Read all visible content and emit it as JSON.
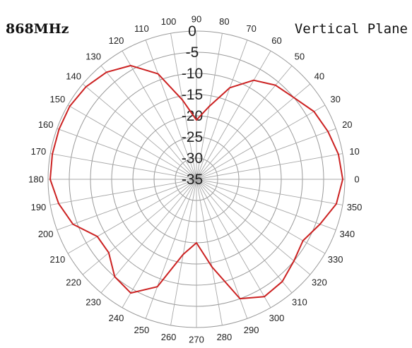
{
  "chart_data": {
    "type": "polar",
    "subtype": "antenna-radiation-pattern",
    "frequency_label": "868MHz",
    "plane_label": "Vertical Plane",
    "angle_unit": "deg",
    "angle_ticks": [
      0,
      10,
      20,
      30,
      40,
      50,
      60,
      70,
      80,
      90,
      100,
      110,
      120,
      130,
      140,
      150,
      160,
      170,
      180,
      190,
      200,
      210,
      220,
      230,
      240,
      250,
      260,
      270,
      280,
      290,
      300,
      310,
      320,
      330,
      340,
      350
    ],
    "angle_direction": "counterclockwise",
    "angle_zero_position": "right",
    "radial_ticks": [
      0,
      -5,
      -10,
      -15,
      -20,
      -25,
      -30,
      -35
    ],
    "radial_range": [
      -35,
      0
    ],
    "grid": true,
    "series": [
      {
        "color": "#cc2222",
        "points": [
          {
            "angle": 0,
            "value": -0.5
          },
          {
            "angle": 10,
            "value": -1
          },
          {
            "angle": 20,
            "value": -2
          },
          {
            "angle": 30,
            "value": -3
          },
          {
            "angle": 40,
            "value": -5
          },
          {
            "angle": 50,
            "value": -6
          },
          {
            "angle": 60,
            "value": -8
          },
          {
            "angle": 70,
            "value": -12
          },
          {
            "angle": 80,
            "value": -17.5
          },
          {
            "angle": 90,
            "value": -21
          },
          {
            "angle": 100,
            "value": -16
          },
          {
            "angle": 110,
            "value": -8.5
          },
          {
            "angle": 120,
            "value": -4
          },
          {
            "angle": 130,
            "value": -2
          },
          {
            "angle": 140,
            "value": -1
          },
          {
            "angle": 150,
            "value": -0.5
          },
          {
            "angle": 160,
            "value": -0.5
          },
          {
            "angle": 170,
            "value": -0.5
          },
          {
            "angle": 180,
            "value": -0.5
          },
          {
            "angle": 190,
            "value": -2
          },
          {
            "angle": 200,
            "value": -4
          },
          {
            "angle": 210,
            "value": -8
          },
          {
            "angle": 220,
            "value": -8
          },
          {
            "angle": 230,
            "value": -5
          },
          {
            "angle": 240,
            "value": -4
          },
          {
            "angle": 250,
            "value": -8
          },
          {
            "angle": 260,
            "value": -17
          },
          {
            "angle": 270,
            "value": -20
          },
          {
            "angle": 280,
            "value": -14
          },
          {
            "angle": 290,
            "value": -5
          },
          {
            "angle": 300,
            "value": -3
          },
          {
            "angle": 310,
            "value": -3.5
          },
          {
            "angle": 320,
            "value": -5
          },
          {
            "angle": 330,
            "value": -6
          },
          {
            "angle": 340,
            "value": -4
          },
          {
            "angle": 350,
            "value": -1.5
          }
        ]
      }
    ]
  }
}
